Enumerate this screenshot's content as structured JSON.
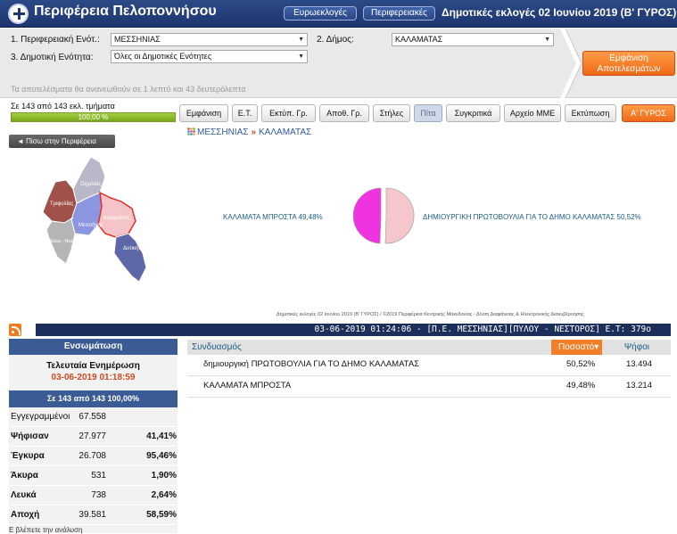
{
  "header": {
    "title": "Περιφέρεια Πελοποννήσου",
    "nav": [
      "Ευρωεκλογές",
      "Περιφερειακές"
    ],
    "election_title": "Δημοτικές εκλογές 02 Ιουνίου 2019 (Β' ΓΥΡΟΣ)"
  },
  "filters": {
    "region_label": "1. Περιφερειακή Ενότ.:",
    "region_value": "ΜΕΣΣΗΝΙΑΣ",
    "municipality_label": "2. Δήμος:",
    "municipality_value": "ΚΑΛΑΜΑΤΑΣ",
    "unit_label": "3. Δημοτική Ενότητα:",
    "unit_value": "Όλες οι Δημοτικές Ενότητες",
    "show_results": "Εμφάνιση Αποτελεσμάτων",
    "refresh_note": "Τα αποτελέσματα θα ανανεωθούν σε 1 λεπτό και 43 δευτερόλεπτα"
  },
  "progress": {
    "label": "Σε 143 από 143 εκλ. τμήματα",
    "value": 1.0,
    "text": "100,00 %"
  },
  "toolbar": {
    "buttons": [
      "Εμφάνιση",
      "Ε.Τ.",
      "Εκτύπ. Γρ.",
      "Αποθ. Γρ.",
      "Στήλες",
      "Πίτα",
      "Συγκριτικά",
      "Αρχείο ΜΜΕ",
      "Εκτύπωση",
      "Α' ΓΥΡΟΣ"
    ]
  },
  "nav": {
    "back": "◄ Πίσω στην Περιφέρεια",
    "breadcrumb": [
      "ΜΕΣΣΗΝΙΑΣ",
      "ΚΑΛΑΜΑΤΑΣ"
    ],
    "breadcrumb_sep": "»"
  },
  "map": {
    "labels": [
      "Τριφυλίας",
      "Οιχαλίας",
      "Μεσσήνης",
      "Καλαμάτας",
      "Πύλου - Νεστορος",
      "Δυτικής"
    ]
  },
  "chart_data": {
    "type": "pie",
    "slices": [
      {
        "label": "ΚΑΛΑΜΑΤΑ ΜΠΡΟΣΤΑ 49,48%",
        "value": 49.48,
        "color": "#ef33e0"
      },
      {
        "label": "ΔΗΜΙΟΥΡΓΙΚΗ ΠΡΩΤΟΒΟΥΛΙΑ ΓΙΑ ΤΟ ΔΗΜΟ ΚΑΛΑΜΑΤΑΣ 50,52%",
        "value": 50.52,
        "color": "#f5c6cb"
      }
    ]
  },
  "credits": "Δημοτικές εκλογές 02 Ιουνίου 2019 (Β' ΓΥΡΟΣ) / ©2019 Περιφέρεια Κεντρικής Μακεδονίας - Δ/νση Διαφάνειας & Ηλεκτρονικής Διακυβέρνησης",
  "ticker": "03-06-2019 01:24:06 - [Π.Ε. ΜΕΣΣΗΝΙΑΣ][ΠΥΛΟΥ - ΝΕΣΤΟΡΟΣ] Ε.Τ: 379ο",
  "stats": {
    "header": "Ενσωμάτωση",
    "last_update_label": "Τελευταία Ενημέρωση",
    "last_update_time": "03-06-2019 01:18:59",
    "count_text": "Σε 143 από 143   100,00%",
    "rows": [
      {
        "label": "Εγγεγραμμένοι",
        "value": "67.558",
        "pct": ""
      },
      {
        "label": "Ψήφισαν",
        "value": "27.977",
        "pct": "41,41%"
      },
      {
        "label": "Έγκυρα",
        "value": "26.708",
        "pct": "95,46%"
      },
      {
        "label": "Άκυρα",
        "value": "531",
        "pct": "1,90%"
      },
      {
        "label": "Λευκά",
        "value": "738",
        "pct": "2,64%"
      },
      {
        "label": "Αποχή",
        "value": "39.581",
        "pct": "58,59%"
      }
    ]
  },
  "results": {
    "headers": [
      "Συνδυασμός",
      "Ποσοστό▾",
      "Ψήφοι"
    ],
    "rows": [
      {
        "name": "δημιουργική ΠΡΩΤΟΒΟΥΛΙΑ ΓΙΑ ΤΟ ΔΗΜΟ ΚΑΛΑΜΑΤΑΣ",
        "pct": "50,52%",
        "votes": "13.494"
      },
      {
        "name": "ΚΑΛΑΜΑΤΑ ΜΠΡΟΣΤΑ",
        "pct": "49,48%",
        "votes": "13.214"
      }
    ]
  },
  "footer_link": "Ε βλέπετε την ανάλυση"
}
